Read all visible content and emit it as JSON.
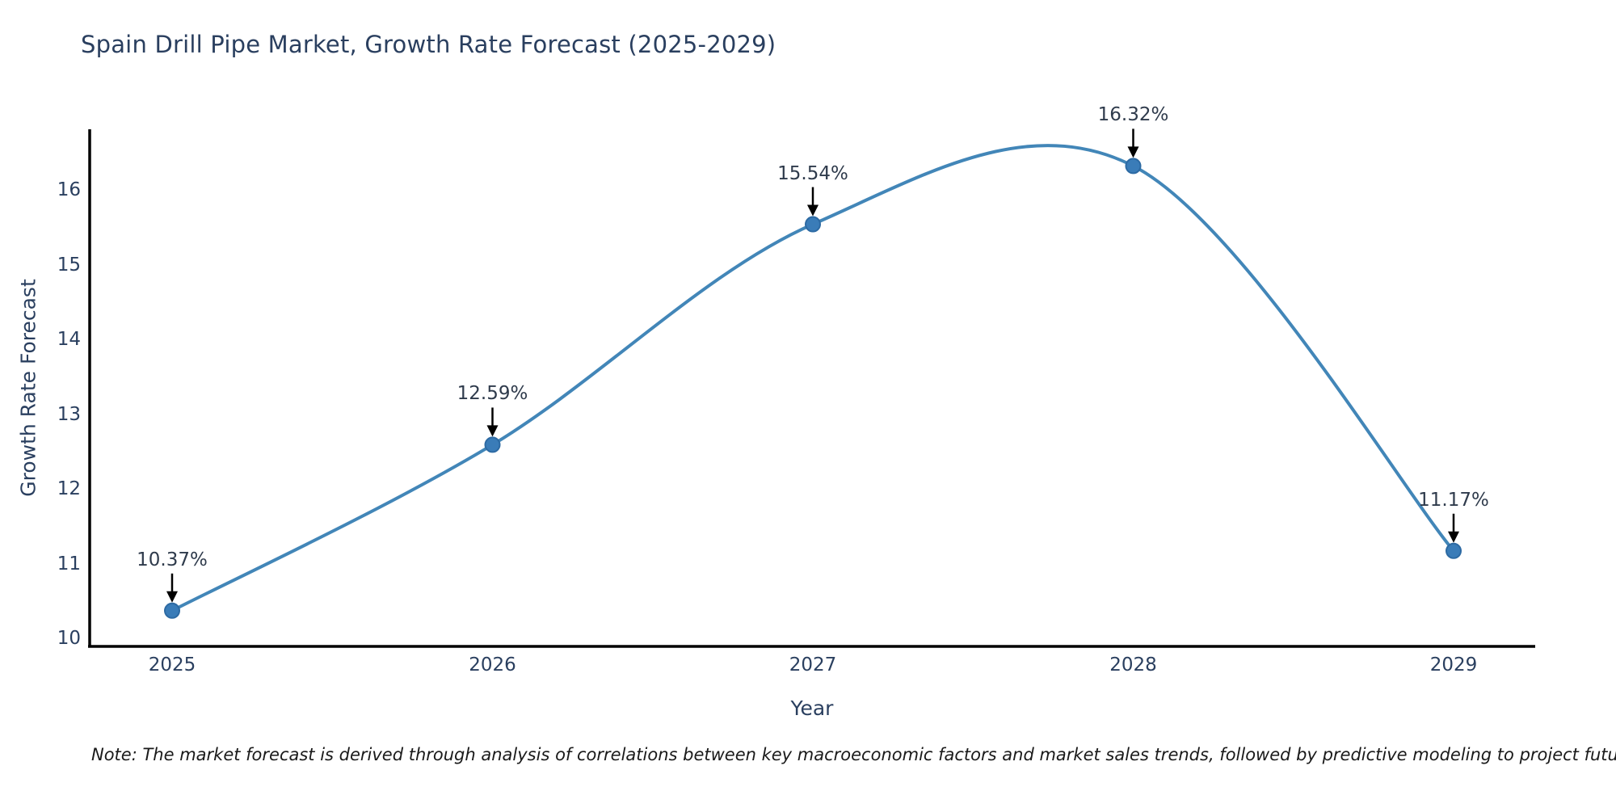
{
  "title": "Spain Drill Pipe Market, Growth Rate Forecast (2025-2029)",
  "note": "Note: The market forecast is derived through analysis of correlations between key macroeconomic factors and market sales trends, followed by predictive modeling to project future sales",
  "chart_data": {
    "type": "line",
    "title": "Spain Drill Pipe Market, Growth Rate Forecast (2025-2029)",
    "xlabel": "Year",
    "ylabel": "Growth Rate Forecast",
    "x": [
      2025,
      2026,
      2027,
      2028,
      2029
    ],
    "x_tick_labels": [
      "2025",
      "2026",
      "2027",
      "2028",
      "2029"
    ],
    "series": [
      {
        "name": "Growth Rate Forecast",
        "values": [
          10.37,
          12.59,
          15.54,
          16.32,
          11.17
        ],
        "point_labels": [
          "10.37%",
          "12.59%",
          "15.54%",
          "16.32%",
          "11.17%"
        ]
      }
    ],
    "yticks": [
      10,
      11,
      12,
      13,
      14,
      15,
      16
    ],
    "ylim": [
      10,
      16.9
    ],
    "grid": false,
    "legend": "none",
    "line_shape": "spline",
    "annotation_arrows": true,
    "colors": {
      "line": "#4286b8",
      "marker_fill": "#3a7cb8",
      "marker_edge": "#2d6aa3",
      "axis": "#000000",
      "text": "#2a3f5f",
      "annotation_arrow": "#000000"
    }
  }
}
